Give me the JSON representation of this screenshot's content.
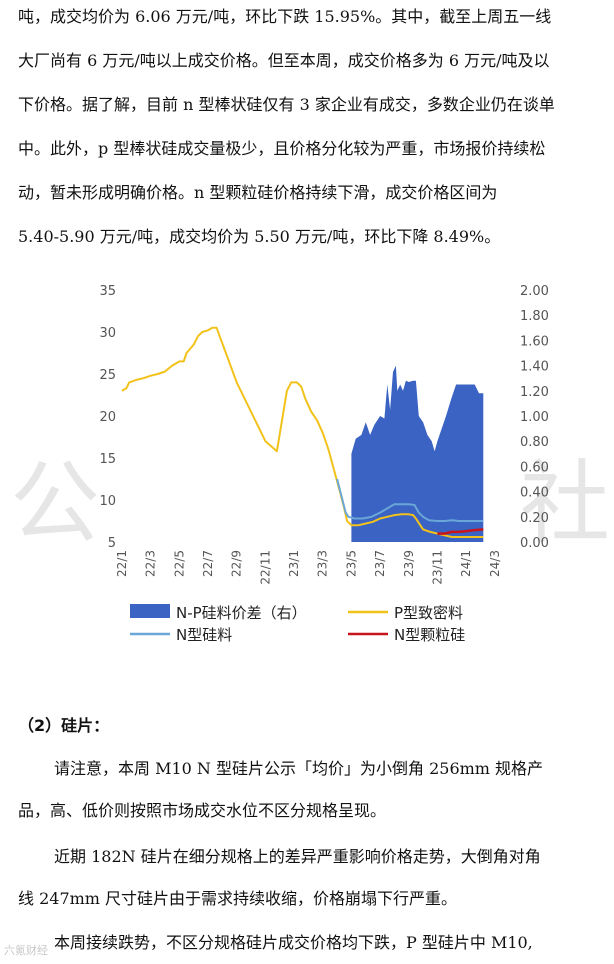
{
  "paragraphs": {
    "p1_lines": [
      "吨，成交均价为 6.06 万元/吨，环比下跌 15.95%。其中，截至上周五一线",
      "大厂尚有 6 万元/吨以上成交价格。但至本周，成交价格多为 6 万元/吨及以",
      "下价格。据了解，目前 n 型棒状硅仅有 3 家企业有成交，多数企业仍在谈单",
      "中。此外，p 型棒状硅成交量极少，且价格分化较为严重，市场报价持续松",
      "动，暂未形成明确价格。n 型颗粒硅价格持续下滑，成交价格区间为",
      "5.40-5.90 万元/吨，成交均价为 5.50 万元/吨，环比下降 8.49%。"
    ],
    "section_heading": "（2）硅片：",
    "p2_lines": [
      "请注意，本周  M10 N  型硅片公示「均价」为小倒角  256mm  规格产",
      "品，高、低价则按照市场成交水位不区分规格呈现。"
    ],
    "p3_lines": [
      "近期  182N  硅片在细分规格上的差异严重影响价格走势，大倒角对角",
      "线  247mm  尺寸硅片由于需求持续收缩，价格崩塌下行严重。"
    ],
    "p4_lines": [
      "本周接续跌势，不区分规格硅片成交价格均下跌，P  型硅片中 M10,"
    ]
  },
  "watermark": {
    "left_char": "公",
    "right_char": "社"
  },
  "corner_logo": "六氪财经",
  "colors": {
    "area": "#3a63c4",
    "p_dense": "#f2c21b",
    "n_silicon": "#6aa7d8",
    "n_granular": "#c8141c",
    "axis_text": "#555555",
    "grid": "#d9d9d9"
  },
  "chart_data": {
    "type": "line",
    "x_labels": [
      "22/1",
      "22/3",
      "22/5",
      "22/7",
      "22/9",
      "22/11",
      "23/1",
      "23/3",
      "23/5",
      "23/7",
      "23/9",
      "23/11",
      "24/1",
      "24/3"
    ],
    "y_left_ticks": [
      "5",
      "10",
      "15",
      "20",
      "25",
      "30",
      "35"
    ],
    "y_left_range": [
      5,
      35
    ],
    "y_right_ticks": [
      "0.00",
      "0.20",
      "0.40",
      "0.60",
      "0.80",
      "1.00",
      "1.20",
      "1.40",
      "1.60",
      "1.80",
      "2.00"
    ],
    "y_right_range": [
      0,
      2.0
    ],
    "series": [
      {
        "name": "N-P硅料价差（右）",
        "kind": "area",
        "axis": "right",
        "points": [
          [
            16.0,
            0.7
          ],
          [
            16.3,
            0.82
          ],
          [
            16.7,
            0.85
          ],
          [
            17.0,
            0.95
          ],
          [
            17.3,
            0.85
          ],
          [
            17.6,
            0.93
          ],
          [
            18.0,
            1.0
          ],
          [
            18.3,
            0.98
          ],
          [
            18.5,
            1.25
          ],
          [
            18.7,
            1.05
          ],
          [
            18.9,
            1.35
          ],
          [
            19.1,
            1.4
          ],
          [
            19.2,
            1.2
          ],
          [
            19.4,
            1.25
          ],
          [
            19.6,
            1.2
          ],
          [
            19.8,
            1.28
          ],
          [
            20.0,
            1.27
          ],
          [
            20.3,
            1.28
          ],
          [
            20.5,
            1.28
          ],
          [
            20.7,
            1.0
          ],
          [
            21.0,
            0.95
          ],
          [
            21.3,
            0.85
          ],
          [
            21.6,
            0.8
          ],
          [
            21.8,
            0.72
          ],
          [
            22.0,
            0.8
          ],
          [
            22.3,
            0.9
          ],
          [
            22.6,
            1.0
          ],
          [
            23.0,
            1.15
          ],
          [
            23.3,
            1.25
          ],
          [
            23.7,
            1.25
          ],
          [
            24.0,
            1.25
          ],
          [
            24.3,
            1.25
          ],
          [
            24.6,
            1.25
          ],
          [
            24.9,
            1.18
          ],
          [
            25.2,
            1.18
          ]
        ]
      },
      {
        "name": "P型致密料",
        "kind": "line",
        "axis": "left",
        "points": [
          [
            0,
            23
          ],
          [
            0.3,
            23.3
          ],
          [
            0.5,
            24
          ],
          [
            1.0,
            24.3
          ],
          [
            1.5,
            24.5
          ],
          [
            2.0,
            24.8
          ],
          [
            2.5,
            25
          ],
          [
            3.0,
            25.3
          ],
          [
            3.5,
            26
          ],
          [
            4.0,
            26.5
          ],
          [
            4.3,
            26.5
          ],
          [
            4.5,
            27.5
          ],
          [
            5.0,
            28.5
          ],
          [
            5.3,
            29.5
          ],
          [
            5.6,
            30
          ],
          [
            6.0,
            30.2
          ],
          [
            6.3,
            30.5
          ],
          [
            6.6,
            30.5
          ],
          [
            8.0,
            24
          ],
          [
            10.0,
            17
          ],
          [
            10.8,
            15.8
          ],
          [
            11.5,
            23
          ],
          [
            11.8,
            24
          ],
          [
            12.2,
            24
          ],
          [
            12.5,
            23.5
          ],
          [
            12.8,
            22
          ],
          [
            13.2,
            20.5
          ],
          [
            13.6,
            19.5
          ],
          [
            14.0,
            18
          ],
          [
            14.4,
            16
          ],
          [
            14.8,
            13.5
          ],
          [
            15.2,
            11
          ],
          [
            15.5,
            9
          ],
          [
            15.7,
            7.5
          ],
          [
            16.0,
            7
          ],
          [
            16.5,
            7
          ],
          [
            17.0,
            7.2
          ],
          [
            17.5,
            7.4
          ],
          [
            18.0,
            7.8
          ],
          [
            18.5,
            8
          ],
          [
            19.0,
            8.2
          ],
          [
            19.5,
            8.3
          ],
          [
            20.0,
            8.3
          ],
          [
            20.3,
            8.2
          ],
          [
            20.5,
            7.8
          ],
          [
            20.8,
            7.0
          ],
          [
            21.0,
            6.5
          ],
          [
            21.5,
            6.2
          ],
          [
            22.0,
            6.0
          ],
          [
            22.5,
            5.8
          ],
          [
            23.0,
            5.6
          ],
          [
            24.0,
            5.6
          ],
          [
            25.2,
            5.6
          ]
        ]
      },
      {
        "name": "N型硅料",
        "kind": "line",
        "axis": "left",
        "points": [
          [
            15.0,
            12.5
          ],
          [
            15.3,
            10.5
          ],
          [
            15.6,
            8.5
          ],
          [
            15.8,
            8.0
          ],
          [
            16.2,
            7.8
          ],
          [
            16.8,
            7.8
          ],
          [
            17.4,
            8.0
          ],
          [
            18.0,
            8.5
          ],
          [
            18.5,
            9.0
          ],
          [
            19.0,
            9.5
          ],
          [
            19.5,
            9.5
          ],
          [
            20.0,
            9.5
          ],
          [
            20.4,
            9.4
          ],
          [
            20.7,
            8.5
          ],
          [
            21.0,
            8.0
          ],
          [
            21.4,
            7.6
          ],
          [
            22.0,
            7.5
          ],
          [
            22.5,
            7.5
          ],
          [
            23.0,
            7.6
          ],
          [
            23.5,
            7.5
          ],
          [
            24.0,
            7.5
          ],
          [
            24.5,
            7.5
          ],
          [
            25.2,
            7.5
          ]
        ]
      },
      {
        "name": "N型颗粒硅",
        "kind": "line",
        "axis": "left",
        "points": [
          [
            22.0,
            6.0
          ],
          [
            22.5,
            6.0
          ],
          [
            23.0,
            6.2
          ],
          [
            23.5,
            6.2
          ],
          [
            24.0,
            6.3
          ],
          [
            24.5,
            6.4
          ],
          [
            25.2,
            6.5
          ]
        ]
      }
    ],
    "legend": [
      {
        "name": "N-P硅料价差（右）",
        "style": "area"
      },
      {
        "name": "P型致密料",
        "style": "line"
      },
      {
        "name": "N型硅料",
        "style": "line"
      },
      {
        "name": "N型颗粒硅",
        "style": "line"
      }
    ]
  }
}
